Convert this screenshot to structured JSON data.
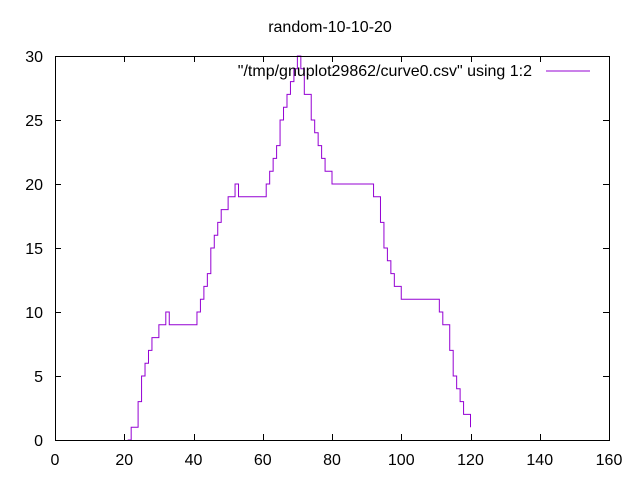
{
  "chart_data": {
    "type": "line",
    "style": "steps",
    "title": "random-10-10-20",
    "xlabel": "",
    "ylabel": "",
    "xlim": [
      0,
      160
    ],
    "ylim": [
      0,
      30
    ],
    "x_ticks": [
      0,
      20,
      40,
      60,
      80,
      100,
      120,
      140,
      160
    ],
    "y_ticks": [
      0,
      5,
      10,
      15,
      20,
      25,
      30
    ],
    "grid": false,
    "legend_position": "top-right",
    "series": [
      {
        "name": "\"/tmp/gnuplot29862/curve0.csv\" using 1:2",
        "color": "#9400d3",
        "x": [
          21,
          22,
          24,
          25,
          26,
          27,
          28,
          30,
          32,
          33,
          41,
          42,
          43,
          44,
          45,
          46,
          47,
          48,
          50,
          52,
          53,
          61,
          62,
          63,
          64,
          65,
          66,
          67,
          68,
          69,
          70,
          71,
          72,
          74,
          75,
          76,
          77,
          78,
          80,
          91,
          92,
          94,
          95,
          96,
          97,
          98,
          100,
          111,
          112,
          114,
          115,
          116,
          117,
          118,
          120
        ],
        "values": [
          0,
          1,
          3,
          5,
          6,
          7,
          8,
          9,
          10,
          9,
          10,
          11,
          12,
          13,
          15,
          16,
          17,
          18,
          19,
          20,
          19,
          20,
          21,
          22,
          23,
          25,
          26,
          27,
          28,
          29,
          30,
          29,
          27,
          25,
          24,
          23,
          22,
          21,
          20,
          20,
          19,
          17,
          15,
          14,
          13,
          12,
          11,
          10,
          9,
          7,
          5,
          4,
          3,
          2,
          1
        ]
      }
    ]
  }
}
